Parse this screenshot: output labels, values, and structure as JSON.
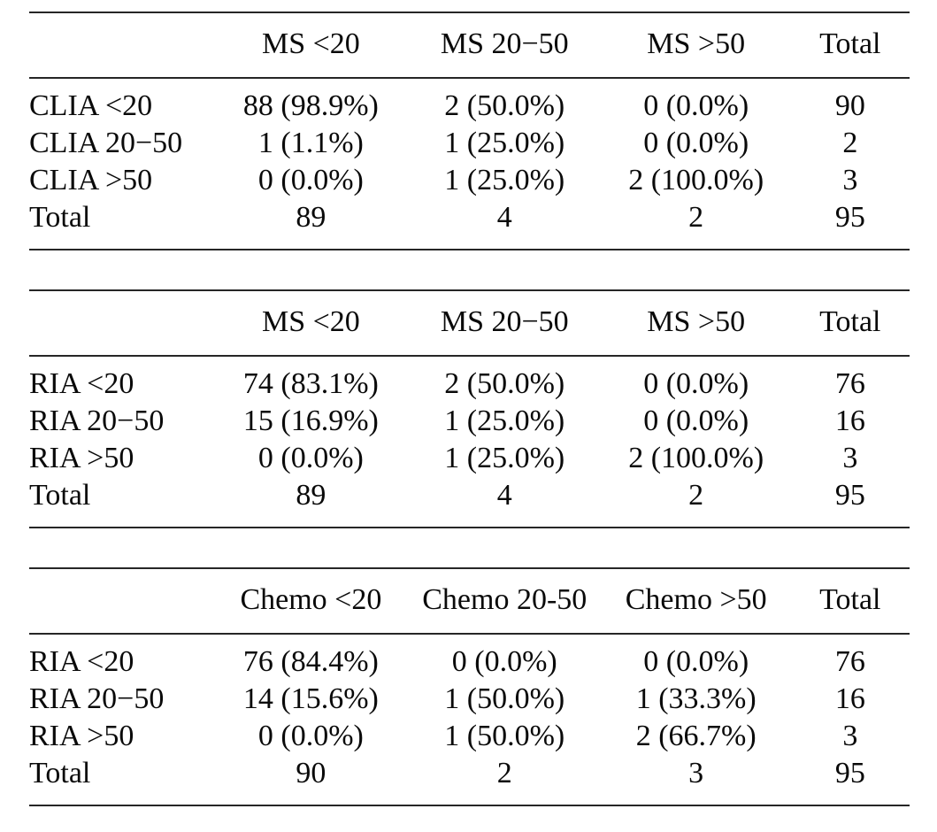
{
  "page": {
    "background": "#ffffff",
    "text_color": "#0a0a0a",
    "rule_color": "#262626"
  },
  "tables": [
    {
      "name": "CLIA vs MS cross-tabulation",
      "columns": [
        "",
        "MS <20",
        "MS 20−50",
        "MS >50",
        "Total"
      ],
      "rows": [
        {
          "label": "CLIA <20",
          "cells": [
            "88 (98.9%)",
            "2 (50.0%)",
            "0 (0.0%)",
            "90"
          ]
        },
        {
          "label": "CLIA 20−50",
          "cells": [
            "1 (1.1%)",
            "1 (25.0%)",
            "0 (0.0%)",
            "2"
          ]
        },
        {
          "label": "CLIA >50",
          "cells": [
            "0 (0.0%)",
            "1 (25.0%)",
            "2 (100.0%)",
            "3"
          ]
        },
        {
          "label": "Total",
          "cells": [
            "89",
            "4",
            "2",
            "95"
          ]
        }
      ]
    },
    {
      "name": "RIA vs MS cross-tabulation",
      "columns": [
        "",
        "MS <20",
        "MS 20−50",
        "MS >50",
        "Total"
      ],
      "rows": [
        {
          "label": "RIA <20",
          "cells": [
            "74 (83.1%)",
            "2 (50.0%)",
            "0 (0.0%)",
            "76"
          ]
        },
        {
          "label": "RIA 20−50",
          "cells": [
            "15 (16.9%)",
            "1 (25.0%)",
            "0 (0.0%)",
            "16"
          ]
        },
        {
          "label": "RIA >50",
          "cells": [
            "0 (0.0%)",
            "1 (25.0%)",
            "2 (100.0%)",
            "3"
          ]
        },
        {
          "label": "Total",
          "cells": [
            "89",
            "4",
            "2",
            "95"
          ]
        }
      ]
    },
    {
      "name": "RIA vs Chemo cross-tabulation",
      "columns": [
        "",
        "Chemo <20",
        "Chemo 20-50",
        "Chemo >50",
        "Total"
      ],
      "rows": [
        {
          "label": "RIA <20",
          "cells": [
            "76 (84.4%)",
            "0 (0.0%)",
            "0 (0.0%)",
            "76"
          ]
        },
        {
          "label": "RIA 20−50",
          "cells": [
            "14 (15.6%)",
            "1 (50.0%)",
            "1 (33.3%)",
            "16"
          ]
        },
        {
          "label": "RIA >50",
          "cells": [
            "0 (0.0%)",
            "1 (50.0%)",
            "2 (66.7%)",
            "3"
          ]
        },
        {
          "label": "Total",
          "cells": [
            "90",
            "2",
            "3",
            "95"
          ]
        }
      ]
    }
  ]
}
